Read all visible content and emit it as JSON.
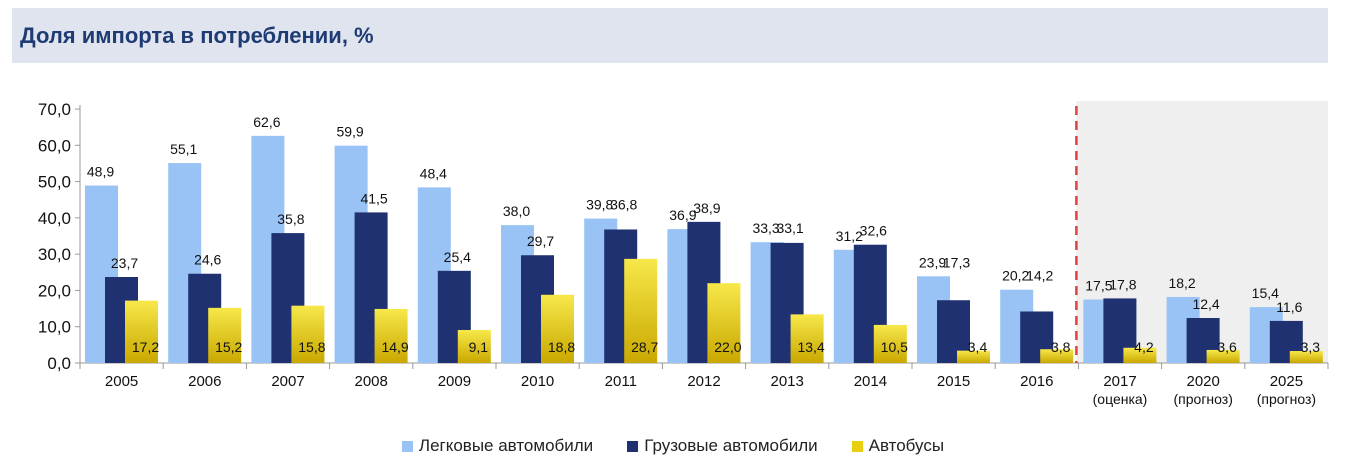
{
  "title": "Доля импорта в потреблении, %",
  "colors": {
    "passenger": "#99c3f5",
    "trucks": "#1f3170",
    "buses": "#f0dc1a",
    "forecast_bg": "#efefef",
    "divider": "#e04040"
  },
  "chart_data": {
    "type": "bar",
    "title": "Доля импорта в потреблении, %",
    "categories": [
      {
        "year": "2005",
        "note": ""
      },
      {
        "year": "2006",
        "note": ""
      },
      {
        "year": "2007",
        "note": ""
      },
      {
        "year": "2008",
        "note": ""
      },
      {
        "year": "2009",
        "note": ""
      },
      {
        "year": "2010",
        "note": ""
      },
      {
        "year": "2011",
        "note": ""
      },
      {
        "year": "2012",
        "note": ""
      },
      {
        "year": "2013",
        "note": ""
      },
      {
        "year": "2014",
        "note": ""
      },
      {
        "year": "2015",
        "note": ""
      },
      {
        "year": "2016",
        "note": ""
      },
      {
        "year": "2017",
        "note": "(оценка)"
      },
      {
        "year": "2020",
        "note": "(прогноз)"
      },
      {
        "year": "2025",
        "note": "(прогноз)"
      }
    ],
    "series": [
      {
        "name": "Легковые автомобили",
        "values": [
          48.9,
          55.1,
          62.6,
          59.9,
          48.4,
          38.0,
          39.8,
          36.9,
          33.3,
          31.2,
          23.9,
          20.2,
          17.5,
          18.2,
          15.4
        ],
        "labels": [
          "48,9",
          "55,1",
          "62,6",
          "59,9",
          "48,4",
          "38,0",
          "39,8",
          "36,9",
          "33,3",
          "31,2",
          "23,9",
          "20,2",
          "17,5",
          "18,2",
          "15,4"
        ]
      },
      {
        "name": "Грузовые автомобили",
        "values": [
          23.7,
          24.6,
          35.8,
          41.5,
          25.4,
          29.7,
          36.8,
          38.9,
          33.1,
          32.6,
          17.3,
          14.2,
          17.8,
          12.4,
          11.6
        ],
        "labels": [
          "23,7",
          "24,6",
          "35,8",
          "41,5",
          "25,4",
          "29,7",
          "36,8",
          "38,9",
          "33,1",
          "32,6",
          "17,3",
          "14,2",
          "17,8",
          "12,4",
          "11,6"
        ]
      },
      {
        "name": "Автобусы",
        "values": [
          17.2,
          15.2,
          15.8,
          14.9,
          9.1,
          18.8,
          28.7,
          22.0,
          13.4,
          10.5,
          3.4,
          3.8,
          4.2,
          3.6,
          3.3
        ],
        "labels": [
          "17,2",
          "15,2",
          "15,8",
          "14,9",
          "9,1",
          "18,8",
          "28,7",
          "22,0",
          "13,4",
          "10,5",
          "3,4",
          "3,8",
          "4,2",
          "3,6",
          "3,3"
        ]
      }
    ],
    "y_ticks": [
      "0,0",
      "10,0",
      "20,0",
      "30,0",
      "40,0",
      "50,0",
      "60,0",
      "70,0"
    ],
    "ylim": [
      0,
      70
    ],
    "forecast_start_index": 12,
    "legend_position": "bottom",
    "grid": false
  },
  "legend": {
    "passenger": "Легковые автомобили",
    "trucks": "Грузовые автомобили",
    "buses": "Автобусы"
  }
}
